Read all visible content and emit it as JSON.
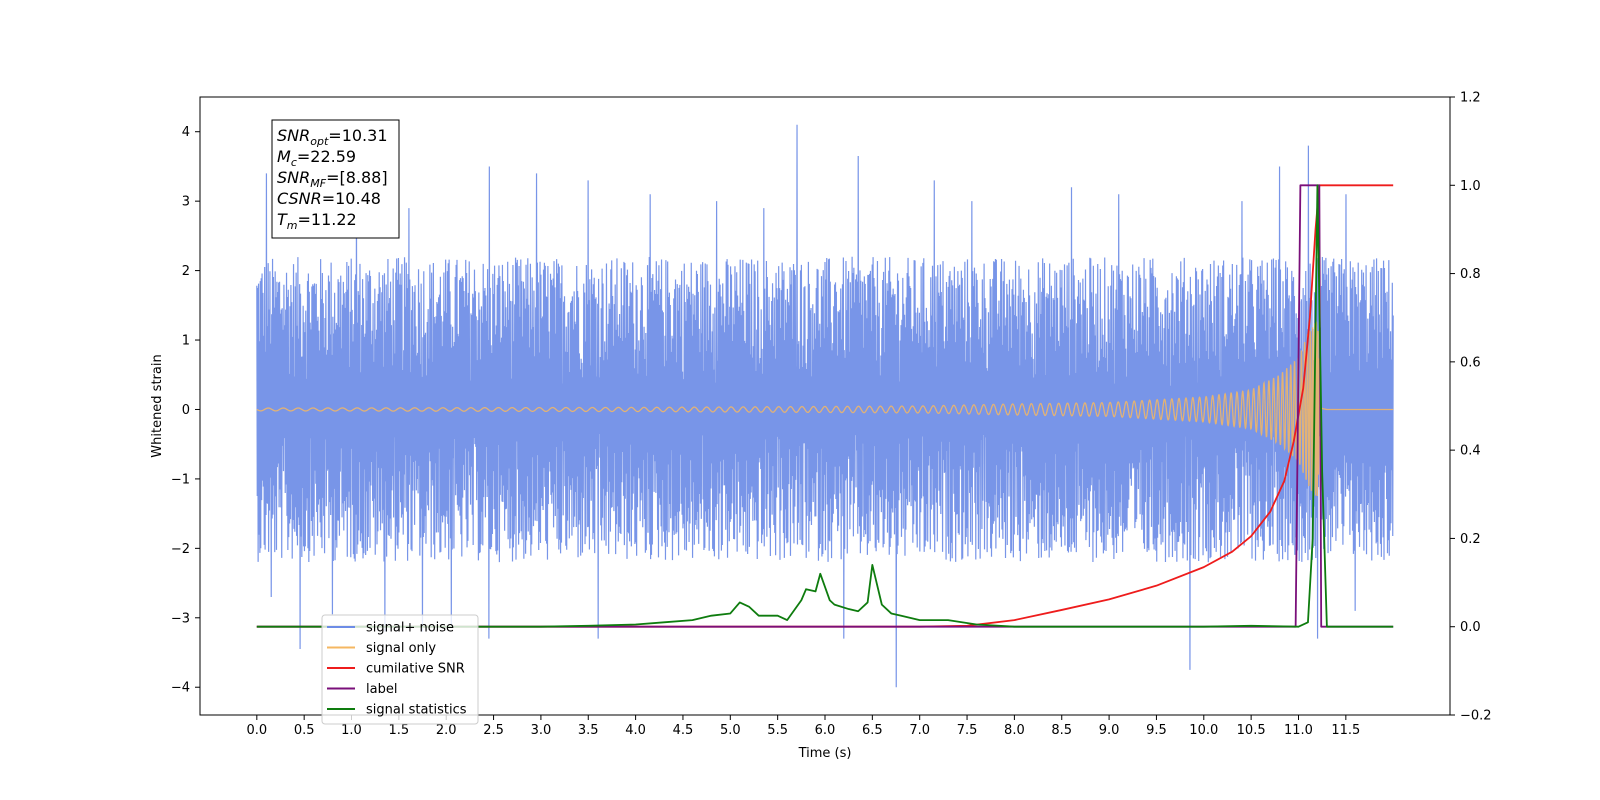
{
  "chart_data": {
    "type": "line",
    "xlabel": "Time (s)",
    "ylabel": "Whitened strain",
    "xlim": [
      -0.6,
      12.6
    ],
    "ylim": [
      -4.4,
      4.5
    ],
    "y2lim": [
      -0.2,
      1.2
    ],
    "x_ticks": [
      0.0,
      0.5,
      1.0,
      1.5,
      2.0,
      2.5,
      3.0,
      3.5,
      4.0,
      4.5,
      5.0,
      5.5,
      6.0,
      6.5,
      7.0,
      7.5,
      8.0,
      8.5,
      9.0,
      9.5,
      10.0,
      10.5,
      11.0,
      11.5
    ],
    "x_tick_labels": [
      "0.0",
      "0.5",
      "1.0",
      "1.5",
      "2.0",
      "2.5",
      "3.0",
      "3.5",
      "4.0",
      "4.5",
      "5.0",
      "5.5",
      "6.0",
      "6.5",
      "7.0",
      "7.5",
      "8.0",
      "8.5",
      "9.0",
      "9.5",
      "10.0",
      "10.5",
      "11.0",
      "11.5"
    ],
    "y_ticks": [
      -4,
      -3,
      -2,
      -1,
      0,
      1,
      2,
      3,
      4
    ],
    "y_tick_labels": [
      "−4",
      "−3",
      "−2",
      "−1",
      "0",
      "1",
      "2",
      "3",
      "4"
    ],
    "y2_ticks": [
      -0.2,
      0.0,
      0.2,
      0.4,
      0.6,
      0.8,
      1.0,
      1.2
    ],
    "y2_tick_labels": [
      "−0.2",
      "0.0",
      "0.2",
      "0.4",
      "0.6",
      "0.8",
      "1.0",
      "1.2"
    ],
    "grid": false,
    "legend_position": "lower-left",
    "annotation": {
      "lines": [
        {
          "sym": "SNR",
          "sub": "opt",
          "value": "=10.31"
        },
        {
          "sym": "M",
          "sub": "c",
          "value": "=22.59"
        },
        {
          "sym": "SNR",
          "sub": "MF",
          "value": "=[8.88]"
        },
        {
          "sym": "CSNR",
          "sub": "",
          "value": "=10.48"
        },
        {
          "sym": "T",
          "sub": "m",
          "value": "=11.22"
        }
      ]
    },
    "series": [
      {
        "name": "signal+ noise",
        "axis": "left",
        "color": "#6d8ce6",
        "kind": "noise",
        "x_range": [
          0.0,
          12.0
        ],
        "typical_amplitude": 2.2,
        "peaks": [
          {
            "x": 0.1,
            "y": 3.4
          },
          {
            "x": 0.15,
            "y": -2.7
          },
          {
            "x": 0.45,
            "y": -3.45
          },
          {
            "x": 0.8,
            "y": -2.95
          },
          {
            "x": 1.05,
            "y": 3.1
          },
          {
            "x": 1.35,
            "y": -3.2
          },
          {
            "x": 1.6,
            "y": 2.9
          },
          {
            "x": 1.75,
            "y": -3.2
          },
          {
            "x": 2.05,
            "y": -3.1
          },
          {
            "x": 2.45,
            "y": 3.5
          },
          {
            "x": 2.45,
            "y": -3.3
          },
          {
            "x": 2.95,
            "y": 3.4
          },
          {
            "x": 3.5,
            "y": 3.3
          },
          {
            "x": 3.6,
            "y": -3.3
          },
          {
            "x": 4.15,
            "y": 3.1
          },
          {
            "x": 4.85,
            "y": 3.0
          },
          {
            "x": 5.35,
            "y": 2.9
          },
          {
            "x": 5.7,
            "y": 4.1
          },
          {
            "x": 6.2,
            "y": -3.3
          },
          {
            "x": 6.35,
            "y": 3.65
          },
          {
            "x": 6.75,
            "y": -4.0
          },
          {
            "x": 7.15,
            "y": 3.3
          },
          {
            "x": 7.55,
            "y": 3.0
          },
          {
            "x": 8.6,
            "y": 3.2
          },
          {
            "x": 9.1,
            "y": 3.1
          },
          {
            "x": 9.85,
            "y": -3.75
          },
          {
            "x": 10.4,
            "y": 3.0
          },
          {
            "x": 10.8,
            "y": 3.5
          },
          {
            "x": 11.1,
            "y": 3.8
          },
          {
            "x": 11.2,
            "y": -3.3
          },
          {
            "x": 11.5,
            "y": 3.1
          },
          {
            "x": 11.6,
            "y": -2.9
          }
        ]
      },
      {
        "name": "signal only",
        "axis": "left",
        "color": "#f5b761",
        "kind": "chirp",
        "t_merger": 11.22,
        "envelope": [
          {
            "x": 0.0,
            "y": 0.02
          },
          {
            "x": 4.0,
            "y": 0.03
          },
          {
            "x": 7.0,
            "y": 0.05
          },
          {
            "x": 8.0,
            "y": 0.08
          },
          {
            "x": 9.0,
            "y": 0.1
          },
          {
            "x": 10.0,
            "y": 0.18
          },
          {
            "x": 10.5,
            "y": 0.28
          },
          {
            "x": 10.8,
            "y": 0.5
          },
          {
            "x": 11.0,
            "y": 0.75
          },
          {
            "x": 11.1,
            "y": 1.1
          },
          {
            "x": 11.2,
            "y": 1.3
          },
          {
            "x": 11.25,
            "y": 0.2
          },
          {
            "x": 11.3,
            "y": 0.0
          },
          {
            "x": 12.0,
            "y": 0.0
          }
        ]
      },
      {
        "name": "cumilative SNR",
        "axis": "right",
        "color": "#ee1c1c",
        "kind": "line",
        "x": [
          0.0,
          4.0,
          7.0,
          7.5,
          8.0,
          8.5,
          9.0,
          9.5,
          10.0,
          10.3,
          10.5,
          10.7,
          10.85,
          10.95,
          11.05,
          11.12,
          11.18,
          11.22,
          11.3,
          12.0
        ],
        "y": [
          0.0,
          0.0,
          0.0,
          0.002,
          0.015,
          0.038,
          0.062,
          0.093,
          0.135,
          0.17,
          0.205,
          0.26,
          0.33,
          0.42,
          0.54,
          0.7,
          0.9,
          1.0,
          1.0,
          1.0
        ]
      },
      {
        "name": "label",
        "axis": "right",
        "color": "#7a0f7a",
        "kind": "line",
        "x": [
          0.0,
          10.97,
          11.02,
          11.22,
          11.24,
          11.3,
          12.0
        ],
        "y": [
          0.0,
          0.0,
          1.0,
          1.0,
          0.0,
          0.0,
          0.0
        ]
      },
      {
        "name": "signal statistics",
        "axis": "right",
        "color": "#0e7c0e",
        "kind": "line",
        "x": [
          0.0,
          3.0,
          3.5,
          4.0,
          4.3,
          4.6,
          4.8,
          5.0,
          5.1,
          5.2,
          5.3,
          5.5,
          5.6,
          5.75,
          5.8,
          5.9,
          5.95,
          6.05,
          6.1,
          6.25,
          6.35,
          6.45,
          6.5,
          6.6,
          6.7,
          6.8,
          7.0,
          7.3,
          7.6,
          8.0,
          10.0,
          10.5,
          11.0,
          11.1,
          11.15,
          11.2,
          11.25,
          11.3,
          12.0
        ],
        "y": [
          0.0,
          0.0,
          0.002,
          0.005,
          0.01,
          0.015,
          0.025,
          0.03,
          0.055,
          0.045,
          0.025,
          0.025,
          0.015,
          0.06,
          0.085,
          0.08,
          0.12,
          0.06,
          0.05,
          0.04,
          0.035,
          0.055,
          0.14,
          0.05,
          0.03,
          0.025,
          0.015,
          0.015,
          0.005,
          0.0,
          0.0,
          0.002,
          0.0,
          0.01,
          0.2,
          1.0,
          0.35,
          0.0,
          0.0
        ]
      }
    ],
    "legend": [
      {
        "name": "signal+ noise",
        "color": "#6d8ce6"
      },
      {
        "name": "signal only",
        "color": "#f5b761"
      },
      {
        "name": "cumilative SNR",
        "color": "#ee1c1c"
      },
      {
        "name": "label",
        "color": "#7a0f7a"
      },
      {
        "name": "signal statistics",
        "color": "#0e7c0e"
      }
    ]
  }
}
